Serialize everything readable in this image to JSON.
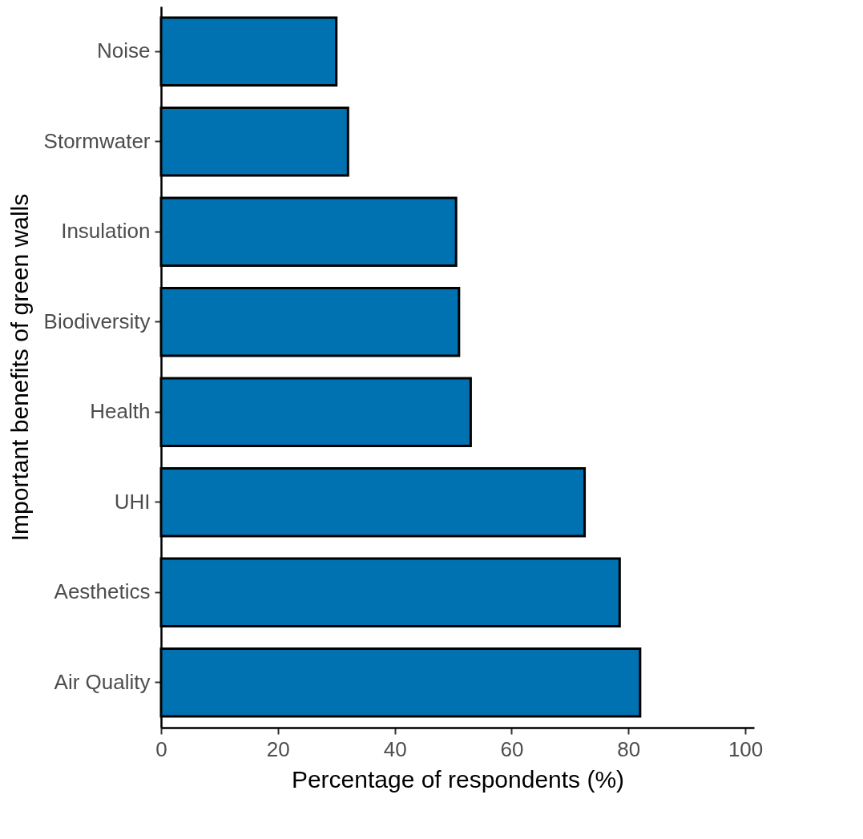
{
  "chart_data": {
    "type": "bar",
    "orientation": "horizontal",
    "xlabel": "Percentage of respondents (%)",
    "ylabel": "Important benefits of green walls",
    "categories": [
      "Noise",
      "Stormwater",
      "Insulation",
      "Biodiversity",
      "Health",
      "UHI",
      "Aesthetics",
      "Air Quality"
    ],
    "values": [
      30,
      32,
      50.5,
      51,
      53,
      72.5,
      78.5,
      82
    ],
    "color": "#0072b2",
    "xlim": [
      0,
      101.5
    ],
    "xticks": [
      0,
      20,
      40,
      60,
      80,
      100
    ],
    "grid": false
  }
}
